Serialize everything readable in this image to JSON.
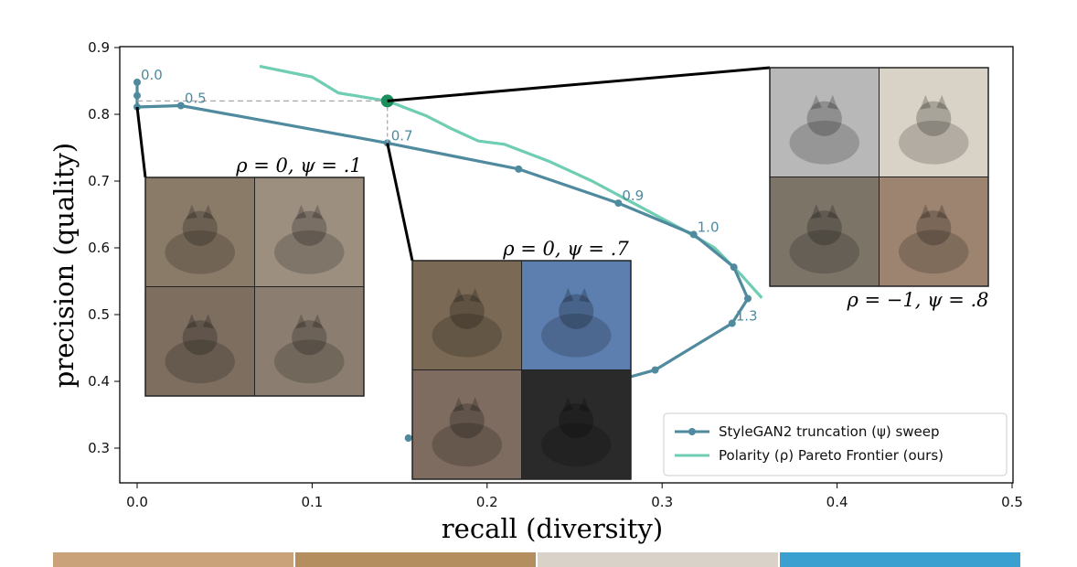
{
  "chart_data": {
    "type": "line",
    "xlabel": "recall (diversity)",
    "ylabel": "precision (quality)",
    "xlim": [
      0.0,
      0.5
    ],
    "ylim": [
      0.25,
      0.9
    ],
    "xticks": [
      "0.0",
      "0.1",
      "0.2",
      "0.3",
      "0.4",
      "0.5"
    ],
    "yticks": [
      "0.3",
      "0.4",
      "0.5",
      "0.6",
      "0.7",
      "0.8",
      "0.9"
    ],
    "grid": false,
    "legend_position": "bottom-right",
    "colors": {
      "stylegan": "#4f8a9e",
      "polarity": "#6fcdb3",
      "highlight": "#1a8f5c"
    },
    "series": [
      {
        "name": "StyleGAN2 truncation (ψ) sweep",
        "marker": "circle",
        "x": [
          0.0,
          0.0,
          0.0,
          0.025,
          0.143,
          0.218,
          0.275,
          0.318,
          0.341,
          0.349,
          0.34,
          0.296,
          0.155
        ],
        "y": [
          0.848,
          0.828,
          0.811,
          0.813,
          0.757,
          0.718,
          0.667,
          0.62,
          0.571,
          0.524,
          0.487,
          0.417,
          0.315
        ]
      },
      {
        "name": "Polarity (ρ) Pareto Frontier (ours)",
        "x": [
          0.07,
          0.1,
          0.115,
          0.143,
          0.165,
          0.18,
          0.195,
          0.21,
          0.235,
          0.26,
          0.285,
          0.31,
          0.33,
          0.345,
          0.357
        ],
        "y": [
          0.872,
          0.856,
          0.832,
          0.82,
          0.798,
          0.778,
          0.76,
          0.755,
          0.73,
          0.7,
          0.665,
          0.63,
          0.6,
          0.56,
          0.525
        ]
      }
    ],
    "point_labels": [
      {
        "text": "0.0",
        "x": 0.0,
        "y": 0.848
      },
      {
        "text": "0.5",
        "x": 0.025,
        "y": 0.813
      },
      {
        "text": "0.7",
        "x": 0.143,
        "y": 0.757
      },
      {
        "text": "0.9",
        "x": 0.275,
        "y": 0.667
      },
      {
        "text": "1.0",
        "x": 0.318,
        "y": 0.62
      },
      {
        "text": "1.3",
        "x": 0.34,
        "y": 0.487
      }
    ],
    "highlight_point": {
      "x": 0.143,
      "y": 0.82
    },
    "insets": [
      {
        "caption": "ρ = 0, ψ = .1",
        "anchor": {
          "x": 0.0,
          "y": 0.811
        },
        "tiles": [
          "#8a7a68",
          "#9c8f80",
          "#7d6e60",
          "#8b7e70"
        ]
      },
      {
        "caption": "ρ = 0, ψ = .7",
        "anchor": {
          "x": 0.143,
          "y": 0.757
        },
        "tiles": [
          "#7a6a55",
          "#5d7fb0",
          "#7d6c5f",
          "#2a2a2a"
        ]
      },
      {
        "caption": "ρ = −1, ψ = .8",
        "anchor": {
          "x": 0.143,
          "y": 0.82
        },
        "tiles": [
          "#b8b8b8",
          "#d9d2c6",
          "#7d7468",
          "#9d8470"
        ]
      }
    ]
  }
}
